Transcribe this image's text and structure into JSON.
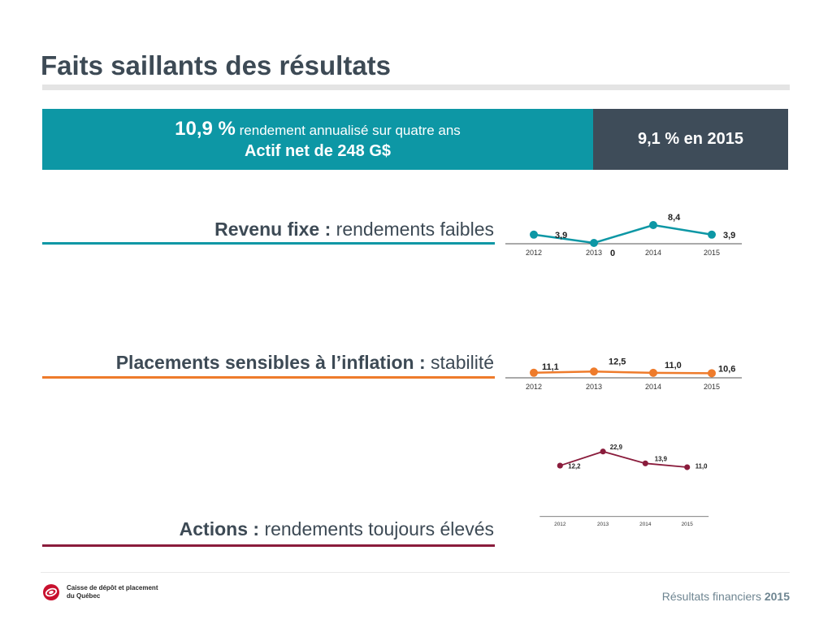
{
  "page": {
    "title": "Faits saillants des résultats"
  },
  "banner": {
    "return_value": "10,9 %",
    "return_text": "rendement annualisé sur quatre ans",
    "net_assets": "Actif net de 248 G$",
    "return_2015": "9,1 % en 2015"
  },
  "colors": {
    "teal": "#0d97a5",
    "orange": "#ee7b2b",
    "maroon": "#8a1c3c",
    "slate": "#3e4c59"
  },
  "chart_data": [
    {
      "type": "line",
      "category_bold": "Revenu fixe :",
      "category_text": "rendements faibles",
      "x": [
        "2012",
        "2013",
        "2014",
        "2015"
      ],
      "values": [
        3.9,
        0,
        8.4,
        3.9
      ],
      "labels": [
        "3,9",
        "0",
        "8,4",
        "3,9"
      ],
      "color": "#0d97a5",
      "ylim": [
        0,
        8.4
      ]
    },
    {
      "type": "line",
      "category_bold": "Placements sensibles à l’inflation :",
      "category_text": "stabilité",
      "x": [
        "2012",
        "2013",
        "2014",
        "2015"
      ],
      "values": [
        11.1,
        12.5,
        11.0,
        10.6
      ],
      "labels": [
        "11,1",
        "12,5",
        "11,0",
        "10,6"
      ],
      "color": "#ee7b2b",
      "ylim": [
        0,
        60
      ]
    },
    {
      "type": "line",
      "category_bold": "Actions :",
      "category_text": "rendements toujours élevés",
      "x": [
        "2012",
        "2013",
        "2014",
        "2015"
      ],
      "values": [
        12.2,
        22.9,
        13.9,
        11.0
      ],
      "labels": [
        "12,2",
        "22,9",
        "13,9",
        "11,0"
      ],
      "color": "#8a1c3c",
      "ylim": [
        0,
        22.9
      ]
    }
  ],
  "footer": {
    "logo_line1": "Caisse de dépôt et placement",
    "logo_line2": "du Québec",
    "right_text": "Résultats financiers",
    "right_year": "2015"
  }
}
